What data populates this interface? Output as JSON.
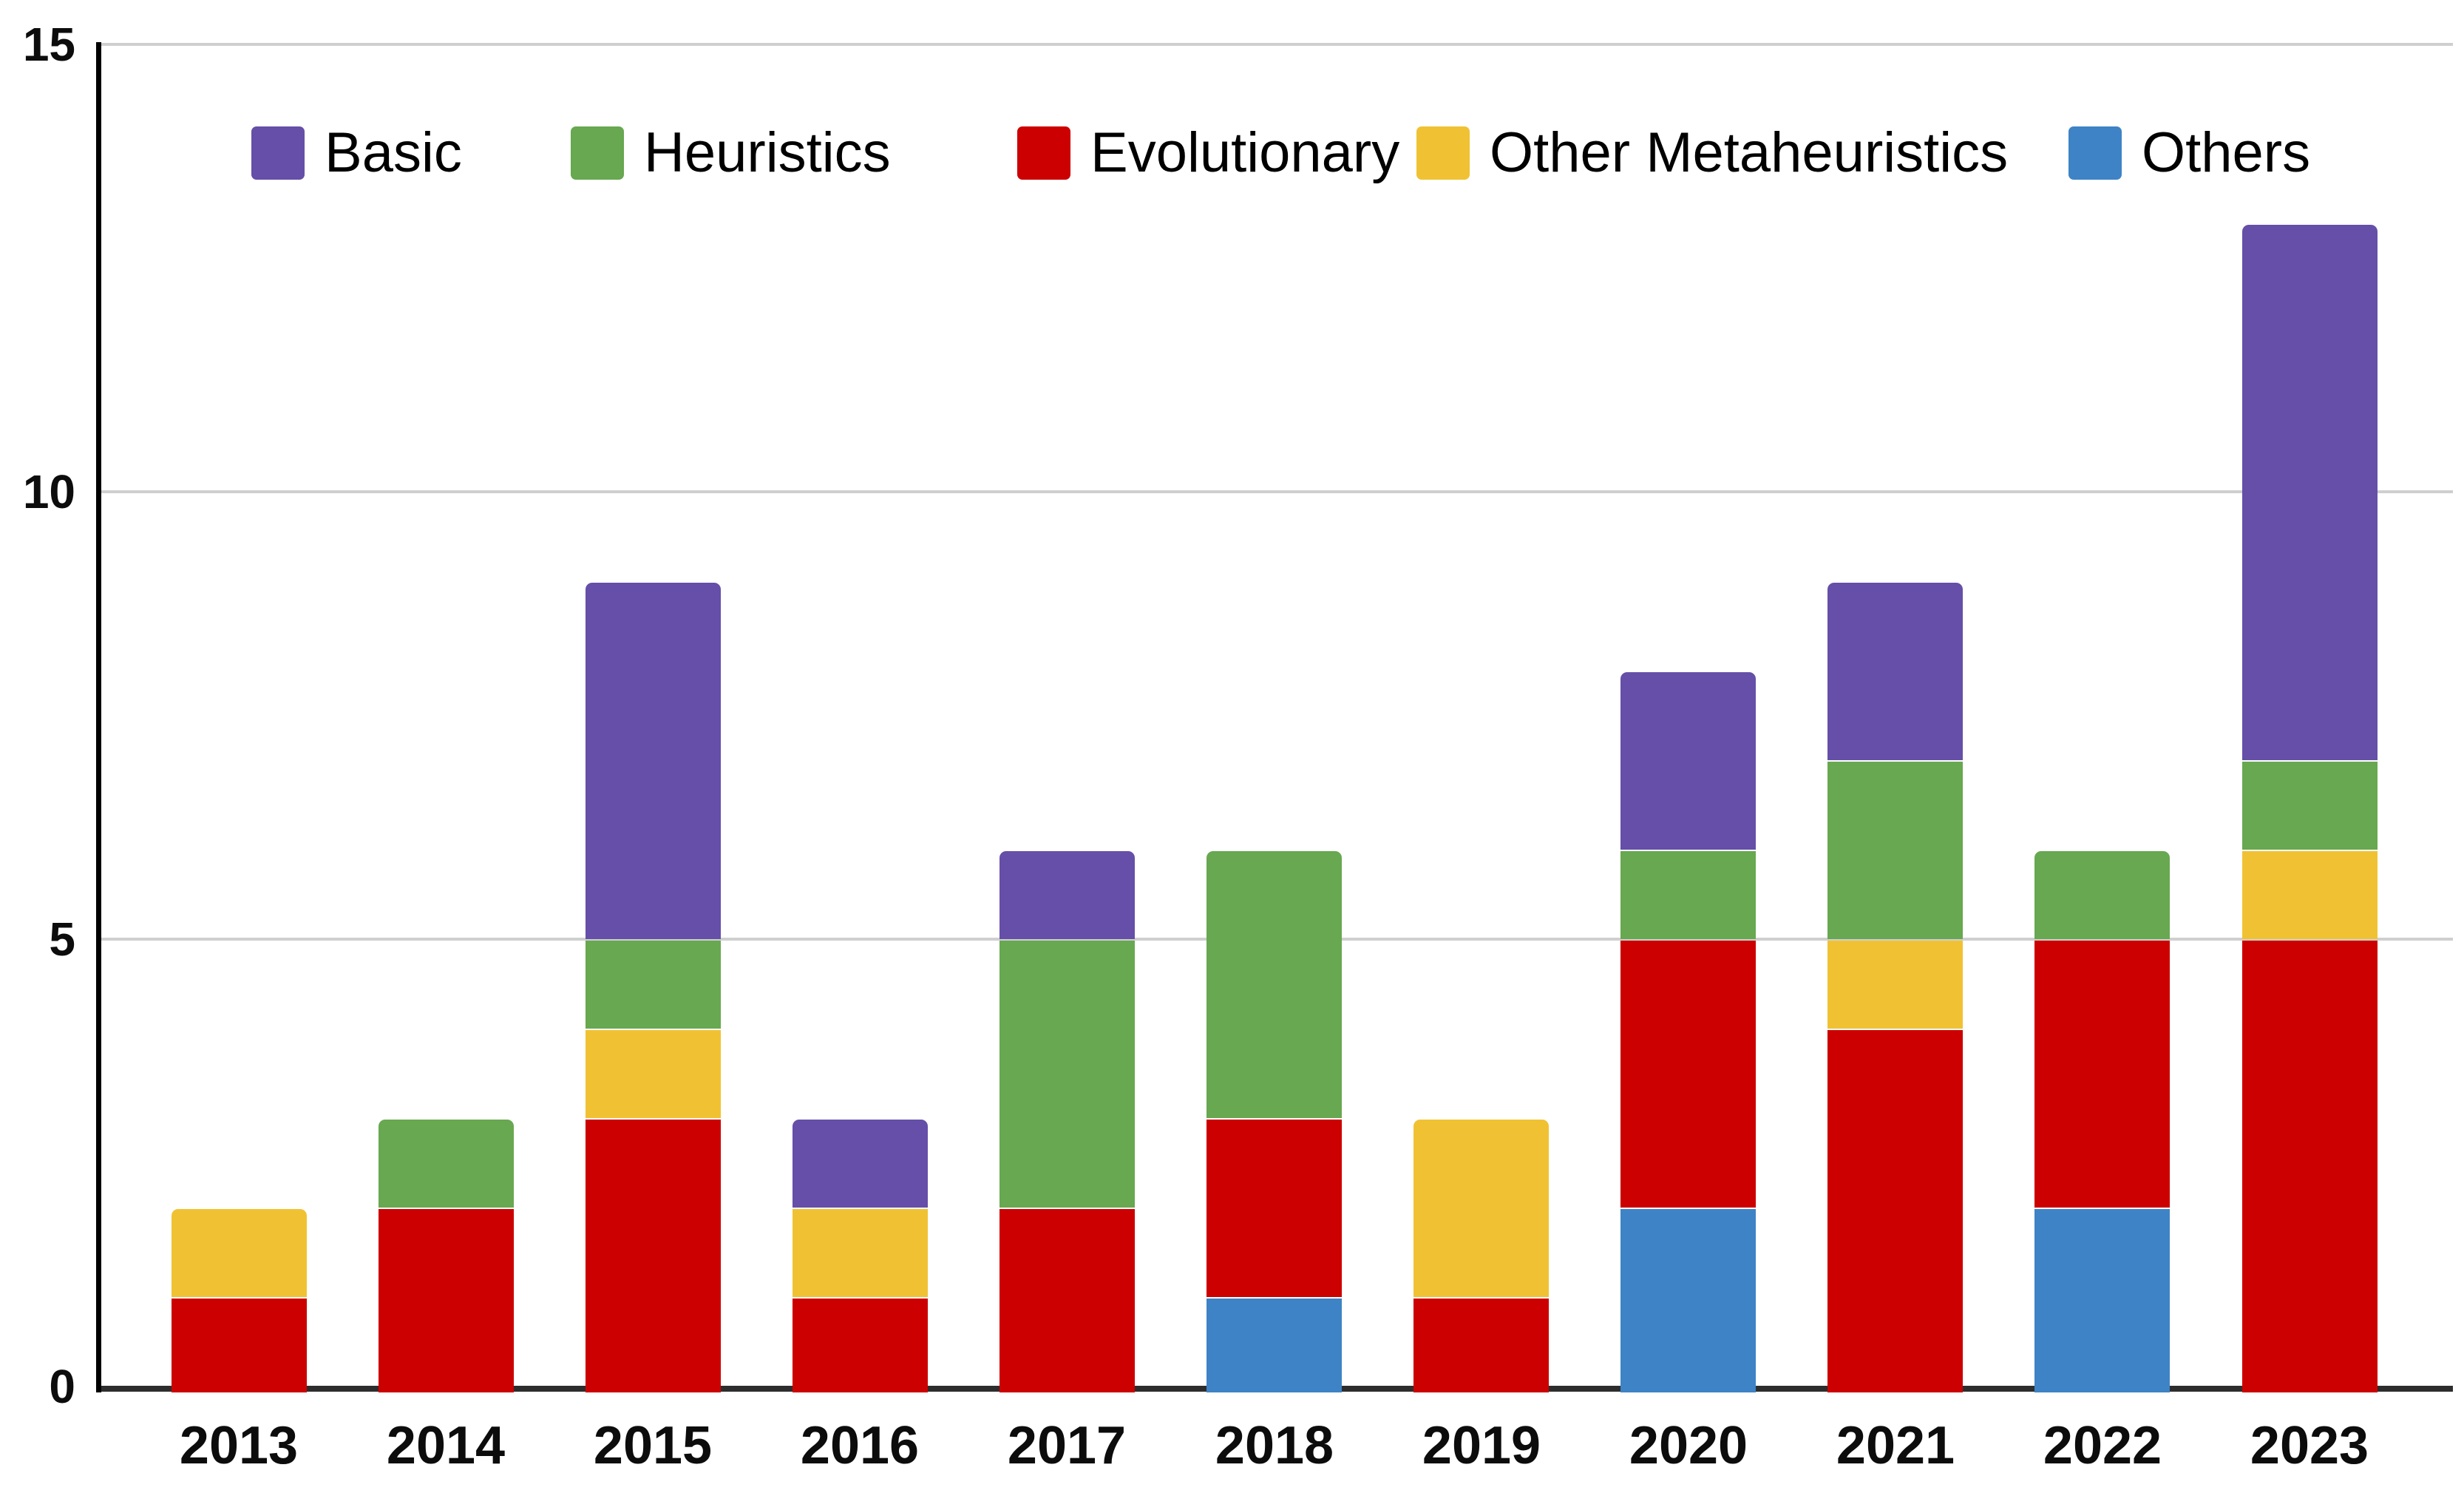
{
  "chart_data": {
    "type": "bar",
    "stacked": true,
    "title": "",
    "xlabel": "",
    "ylabel": "",
    "categories": [
      "2013",
      "2014",
      "2015",
      "2016",
      "2017",
      "2018",
      "2019",
      "2020",
      "2021",
      "2022",
      "2023"
    ],
    "series": [
      {
        "name": "Others",
        "color": "#3e83c5",
        "values": [
          0,
          0,
          0,
          0,
          0,
          1,
          0,
          2,
          0,
          2,
          0
        ]
      },
      {
        "name": "Evolutionary",
        "color": "#cc0000",
        "values": [
          1,
          2,
          3,
          1,
          2,
          2,
          1,
          3,
          4,
          3,
          5
        ]
      },
      {
        "name": "Other Metaheuristics",
        "color": "#f0c233",
        "values": [
          1,
          0,
          1,
          1,
          0,
          0,
          2,
          0,
          1,
          0,
          1
        ]
      },
      {
        "name": "Heuristics",
        "color": "#67a850",
        "values": [
          0,
          1,
          1,
          0,
          3,
          3,
          0,
          1,
          2,
          1,
          1
        ]
      },
      {
        "name": "Basic",
        "color": "#654fa8",
        "values": [
          0,
          0,
          4,
          1,
          1,
          0,
          0,
          2,
          2,
          0,
          6
        ]
      }
    ],
    "totals": [
      2,
      3,
      9,
      3,
      6,
      6,
      3,
      8,
      9,
      6,
      13
    ],
    "legend": {
      "position": "top",
      "entries": [
        {
          "label": "Basic",
          "color": "#654fa8"
        },
        {
          "label": "Heuristics",
          "color": "#67a850"
        },
        {
          "label": "Evolutionary",
          "color": "#cc0000"
        },
        {
          "label": "Other Metaheuristics",
          "color": "#f0c233"
        },
        {
          "label": "Others",
          "color": "#3e83c5"
        }
      ]
    },
    "y_axis": {
      "ticks": [
        0,
        5,
        10,
        15
      ],
      "tick_labels": [
        "0",
        "5",
        "10",
        "15"
      ],
      "ylim": [
        0,
        15
      ],
      "grid": true
    },
    "colors": {
      "gridline": "#cfcfcf",
      "baseline": "#2d2d2d",
      "y_axis_line": "#000000",
      "text": "#0c0c0c",
      "background": "#ffffff"
    }
  }
}
